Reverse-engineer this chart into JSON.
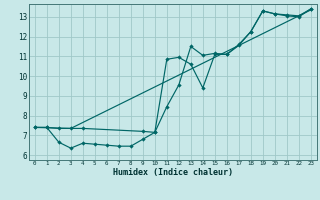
{
  "title": "",
  "xlabel": "Humidex (Indice chaleur)",
  "background_color": "#c8e8e8",
  "grid_color": "#a0c8c8",
  "line_color": "#006666",
  "xlim": [
    -0.5,
    23.5
  ],
  "ylim": [
    5.75,
    13.65
  ],
  "xticks": [
    0,
    1,
    2,
    3,
    4,
    5,
    6,
    7,
    8,
    9,
    10,
    11,
    12,
    13,
    14,
    15,
    16,
    17,
    18,
    19,
    20,
    21,
    22,
    23
  ],
  "yticks": [
    6,
    7,
    8,
    9,
    10,
    11,
    12,
    13
  ],
  "line1_x": [
    0,
    1,
    2,
    3,
    4,
    9,
    10,
    11,
    12,
    13,
    14,
    15,
    16,
    17,
    18,
    19,
    20,
    21,
    22,
    23
  ],
  "line1_y": [
    7.4,
    7.4,
    7.35,
    7.35,
    7.35,
    7.2,
    7.15,
    10.85,
    10.95,
    10.6,
    9.4,
    11.1,
    11.1,
    11.6,
    12.25,
    13.3,
    13.15,
    13.05,
    13.0,
    13.4
  ],
  "line2_x": [
    0,
    1,
    2,
    3,
    4,
    5,
    6,
    7,
    8,
    9,
    10,
    11,
    12,
    13,
    14,
    15,
    16,
    17,
    18,
    19,
    20,
    21,
    22,
    23
  ],
  "line2_y": [
    7.4,
    7.4,
    6.65,
    6.35,
    6.6,
    6.55,
    6.5,
    6.45,
    6.45,
    6.8,
    7.15,
    8.45,
    9.55,
    11.5,
    11.05,
    11.15,
    11.1,
    11.55,
    12.25,
    13.3,
    13.15,
    13.1,
    13.05,
    13.4
  ],
  "line3_x": [
    0,
    3,
    23
  ],
  "line3_y": [
    7.4,
    7.35,
    13.35
  ]
}
